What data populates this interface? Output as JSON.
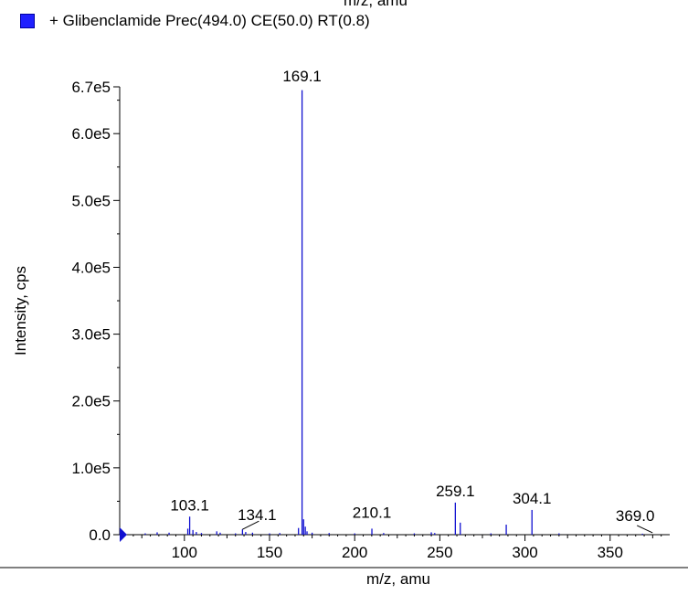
{
  "top_cut_label": "m/z, amu",
  "legend": {
    "label": "+ Glibenclamide Prec(494.0) CE(50.0) RT(0.8)",
    "color": "#1f20ff"
  },
  "chart_data": {
    "type": "bar",
    "xlabel": "m/z, amu",
    "ylabel": "Intensity, cps",
    "xlim": [
      62,
      385
    ],
    "ylim": [
      0,
      670000
    ],
    "x_ticks": [
      100,
      150,
      200,
      250,
      300,
      350
    ],
    "x_tick_labels": [
      "100",
      "150",
      "200",
      "250",
      "300",
      "350"
    ],
    "y_ticks": [
      0,
      100000,
      200000,
      300000,
      400000,
      500000,
      600000,
      670000
    ],
    "y_tick_labels": [
      "0.0",
      "1.0e5",
      "2.0e5",
      "3.0e5",
      "4.0e5",
      "5.0e5",
      "6.0e5",
      "6.7e5"
    ],
    "bar_color": "#1010d0",
    "peaks": [
      {
        "mz": 77.0,
        "intensity": 2000
      },
      {
        "mz": 84.0,
        "intensity": 3500
      },
      {
        "mz": 91.0,
        "intensity": 3000
      },
      {
        "mz": 102.0,
        "intensity": 9000
      },
      {
        "mz": 103.1,
        "intensity": 27000
      },
      {
        "mz": 105.0,
        "intensity": 7000
      },
      {
        "mz": 107.0,
        "intensity": 4000
      },
      {
        "mz": 110.0,
        "intensity": 2500
      },
      {
        "mz": 119.0,
        "intensity": 5000
      },
      {
        "mz": 121.0,
        "intensity": 3000
      },
      {
        "mz": 130.0,
        "intensity": 2000
      },
      {
        "mz": 134.1,
        "intensity": 8000
      },
      {
        "mz": 136.0,
        "intensity": 4000
      },
      {
        "mz": 140.0,
        "intensity": 3000
      },
      {
        "mz": 150.0,
        "intensity": 2000
      },
      {
        "mz": 156.0,
        "intensity": 2500
      },
      {
        "mz": 167.0,
        "intensity": 10000
      },
      {
        "mz": 169.1,
        "intensity": 665000
      },
      {
        "mz": 170.0,
        "intensity": 23000
      },
      {
        "mz": 171.0,
        "intensity": 12000
      },
      {
        "mz": 172.0,
        "intensity": 5000
      },
      {
        "mz": 175.0,
        "intensity": 3000
      },
      {
        "mz": 185.0,
        "intensity": 2500
      },
      {
        "mz": 200.0,
        "intensity": 2000
      },
      {
        "mz": 210.1,
        "intensity": 9000
      },
      {
        "mz": 217.0,
        "intensity": 2500
      },
      {
        "mz": 235.0,
        "intensity": 2000
      },
      {
        "mz": 245.0,
        "intensity": 3500
      },
      {
        "mz": 247.0,
        "intensity": 2500
      },
      {
        "mz": 259.1,
        "intensity": 48000
      },
      {
        "mz": 262.0,
        "intensity": 18000
      },
      {
        "mz": 280.0,
        "intensity": 2000
      },
      {
        "mz": 289.0,
        "intensity": 15000
      },
      {
        "mz": 304.1,
        "intensity": 37000
      },
      {
        "mz": 320.0,
        "intensity": 2000
      },
      {
        "mz": 369.0,
        "intensity": 1500
      }
    ],
    "annotations": [
      {
        "label": "169.1",
        "mz": 169.1,
        "intensity": 665000
      },
      {
        "label": "103.1",
        "mz": 103.1,
        "intensity": 27000
      },
      {
        "label": "134.1",
        "mz": 134.1,
        "intensity": 8000
      },
      {
        "label": "210.1",
        "mz": 210.1,
        "intensity": 9000
      },
      {
        "label": "259.1",
        "mz": 259.1,
        "intensity": 48000
      },
      {
        "label": "304.1",
        "mz": 304.1,
        "intensity": 37000
      },
      {
        "label": "369.0",
        "mz": 369.0,
        "intensity": 1500
      }
    ]
  }
}
